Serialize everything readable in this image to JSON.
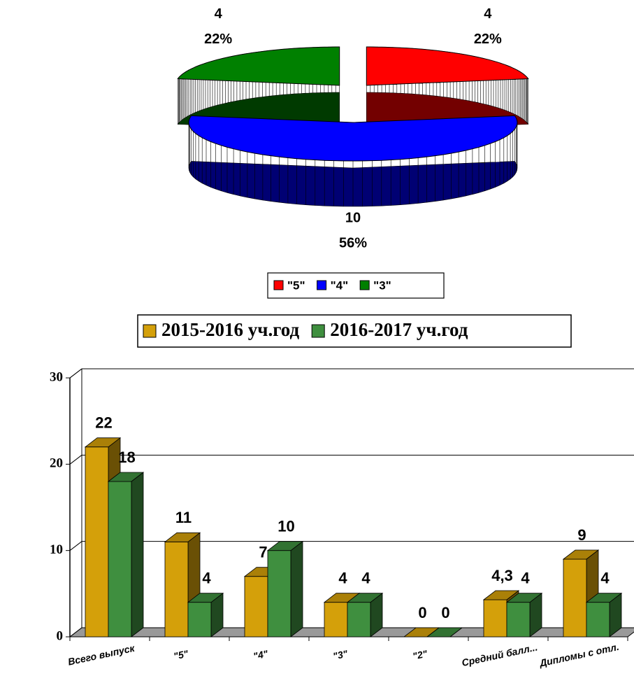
{
  "chart_data": [
    {
      "type": "pie",
      "categories": [
        "\"5\"",
        "\"4\"",
        "\"3\""
      ],
      "values": [
        4,
        10,
        4
      ],
      "percent_labels": [
        "22%",
        "56%",
        "22%"
      ],
      "colors": [
        "#ff0000",
        "#0000ff",
        "#008000"
      ],
      "legend": "bottom"
    },
    {
      "type": "bar",
      "categories": [
        "Всего выпуск",
        "\"5\"",
        "\"4\"",
        "\"3\"",
        "\"2\"",
        "Средний балл...",
        "Дипломы с отл."
      ],
      "series": [
        {
          "name": "2015-2016 уч.год",
          "color": "#d4a00a",
          "values": [
            22,
            11,
            7,
            4,
            0,
            4.3,
            9
          ],
          "value_labels": [
            "22",
            "11",
            "7",
            "4",
            "0",
            "4,3",
            "9"
          ]
        },
        {
          "name": "2016-2017 уч.год",
          "color": "#3f8f3f",
          "values": [
            18,
            4,
            10,
            4,
            0,
            4,
            4
          ]
        }
      ],
      "ylim": [
        0,
        30
      ],
      "yticks": [
        0,
        10,
        20,
        30
      ],
      "grid": true,
      "legend": "top"
    }
  ]
}
